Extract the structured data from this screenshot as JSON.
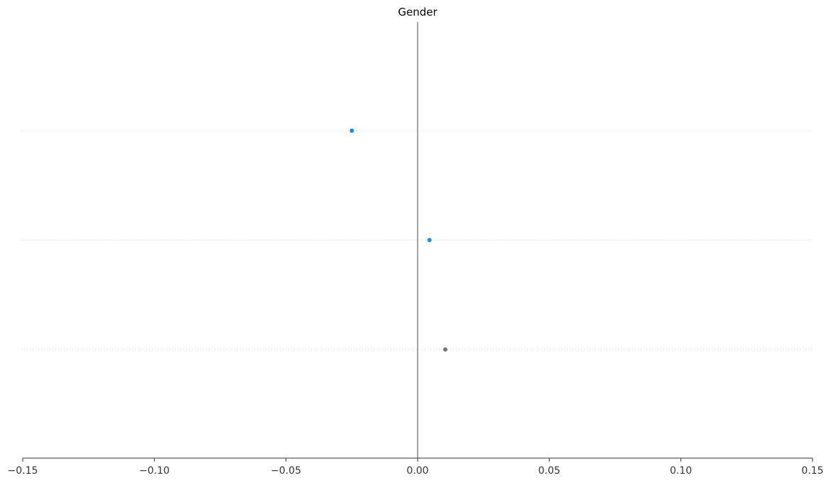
{
  "chart_data": {
    "type": "scatter",
    "title": "Gender",
    "xlabel": "",
    "ylabel": "",
    "xlim": [
      -0.15,
      0.15
    ],
    "x_ticks": [
      -0.15,
      -0.1,
      -0.05,
      0.0,
      0.05,
      0.1,
      0.15
    ],
    "x_tick_labels": [
      "−0.15",
      "−0.10",
      "−0.05",
      "0.00",
      "0.05",
      "0.10",
      "0.15"
    ],
    "reference_line_x": 0.0,
    "rows": 3,
    "points": [
      {
        "row": 0,
        "x": -0.025,
        "color": "#1e88e5"
      },
      {
        "row": 1,
        "x": 0.0045,
        "color": "#1e88e5"
      },
      {
        "row": 2,
        "x": 0.0105,
        "color": "#777777"
      }
    ],
    "grid": "row-dotted-lines"
  }
}
